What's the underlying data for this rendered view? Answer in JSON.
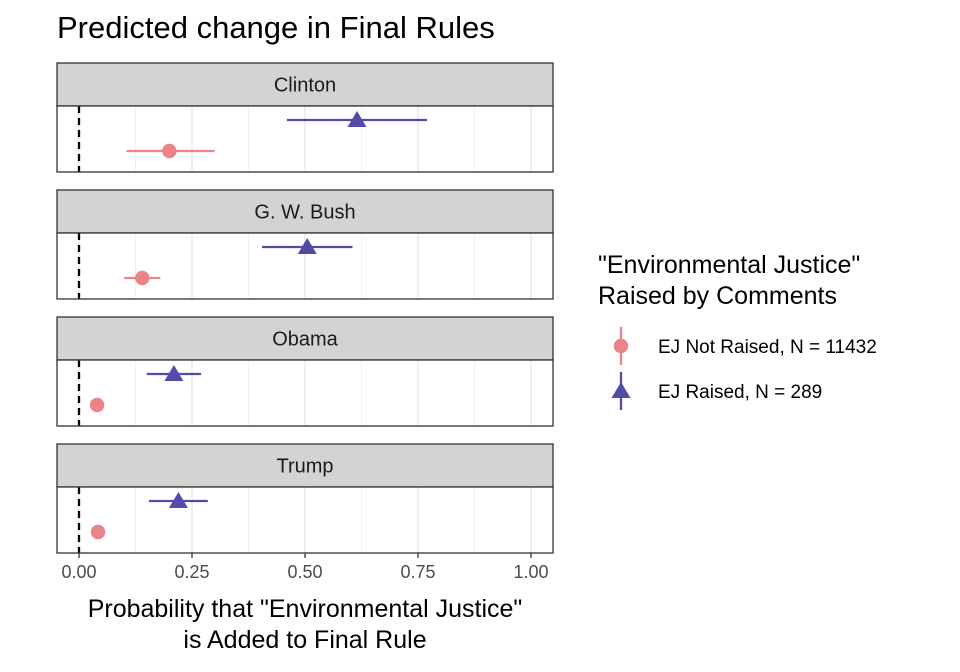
{
  "chart_data": {
    "type": "scatter",
    "title": "Predicted change in Final Rules",
    "xlabel_line1": "Probability that \"Environmental Justice\"",
    "xlabel_line2": "is Added to Final Rule",
    "xlim": [
      0,
      1.0
    ],
    "x_ticks": [
      0,
      0.25,
      0.5,
      0.75,
      1.0
    ],
    "x_tick_labels": [
      "0.00",
      "0.25",
      "0.50",
      "0.75",
      "1.00"
    ],
    "reference_line": 0,
    "grid": true,
    "legend": {
      "title_line1": "\"Environmental Justice\"",
      "title_line2": "Raised by Comments",
      "placement": "right"
    },
    "series": [
      {
        "name": "EJ Not Raised, N = 11432",
        "marker": "circle",
        "color": "#e8696f"
      },
      {
        "name": "EJ Raised, N = 289",
        "marker": "triangle",
        "color": "#2d2496"
      }
    ],
    "panels": [
      {
        "label": "Clinton",
        "points": [
          {
            "series": 0,
            "estimate": 0.2,
            "low": 0.105,
            "high": 0.3
          },
          {
            "series": 1,
            "estimate": 0.615,
            "low": 0.46,
            "high": 0.77
          }
        ]
      },
      {
        "label": "G. W. Bush",
        "points": [
          {
            "series": 0,
            "estimate": 0.14,
            "low": 0.1,
            "high": 0.18
          },
          {
            "series": 1,
            "estimate": 0.505,
            "low": 0.405,
            "high": 0.605
          }
        ]
      },
      {
        "label": "Obama",
        "points": [
          {
            "series": 0,
            "estimate": 0.04,
            "low": 0.03,
            "high": 0.05
          },
          {
            "series": 1,
            "estimate": 0.21,
            "low": 0.15,
            "high": 0.27
          }
        ]
      },
      {
        "label": "Trump",
        "points": [
          {
            "series": 0,
            "estimate": 0.042,
            "low": 0.032,
            "high": 0.052
          },
          {
            "series": 1,
            "estimate": 0.22,
            "low": 0.155,
            "high": 0.285
          }
        ]
      }
    ]
  }
}
